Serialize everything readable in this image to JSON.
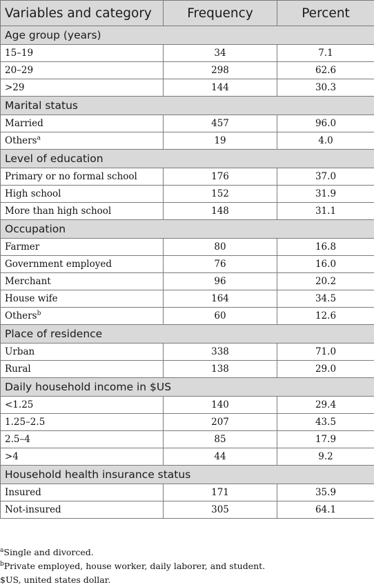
{
  "table": {
    "headers": [
      "Variables and category",
      "Frequency",
      "Percent"
    ],
    "sections": [
      {
        "title": "Age group (years)",
        "rows": [
          {
            "label": "15–19",
            "sup": "",
            "frequency": "34",
            "percent": "7.1"
          },
          {
            "label": "20–29",
            "sup": "",
            "frequency": "298",
            "percent": "62.6"
          },
          {
            "label": ">29",
            "sup": "",
            "frequency": "144",
            "percent": "30.3"
          }
        ]
      },
      {
        "title": "Marital status",
        "rows": [
          {
            "label": "Married",
            "sup": "",
            "frequency": "457",
            "percent": "96.0"
          },
          {
            "label": "Others",
            "sup": "a",
            "frequency": "19",
            "percent": "4.0"
          }
        ]
      },
      {
        "title": "Level of education",
        "rows": [
          {
            "label": "Primary or no formal school",
            "sup": "",
            "frequency": "176",
            "percent": "37.0"
          },
          {
            "label": "High school",
            "sup": "",
            "frequency": "152",
            "percent": "31.9"
          },
          {
            "label": "More than high school",
            "sup": "",
            "frequency": "148",
            "percent": "31.1"
          }
        ]
      },
      {
        "title": "Occupation",
        "rows": [
          {
            "label": "Farmer",
            "sup": "",
            "frequency": "80",
            "percent": "16.8"
          },
          {
            "label": "Government employed",
            "sup": "",
            "frequency": "76",
            "percent": "16.0"
          },
          {
            "label": "Merchant",
            "sup": "",
            "frequency": "96",
            "percent": "20.2"
          },
          {
            "label": "House wife",
            "sup": "",
            "frequency": "164",
            "percent": "34.5"
          },
          {
            "label": "Others",
            "sup": "b",
            "frequency": "60",
            "percent": "12.6"
          }
        ]
      },
      {
        "title": "Place of residence",
        "rows": [
          {
            "label": "Urban",
            "sup": "",
            "frequency": "338",
            "percent": "71.0"
          },
          {
            "label": "Rural",
            "sup": "",
            "frequency": "138",
            "percent": "29.0"
          }
        ]
      },
      {
        "title": "Daily household income in $US",
        "rows": [
          {
            "label": "<1.25",
            "sup": "",
            "frequency": "140",
            "percent": "29.4"
          },
          {
            "label": "1.25–2.5",
            "sup": "",
            "frequency": "207",
            "percent": "43.5"
          },
          {
            "label": "2.5–4",
            "sup": "",
            "frequency": "85",
            "percent": "17.9"
          },
          {
            "label": ">4",
            "sup": "",
            "frequency": "44",
            "percent": "9.2"
          }
        ]
      },
      {
        "title": "Household health insurance status",
        "rows": [
          {
            "label": "Insured",
            "sup": "",
            "frequency": "171",
            "percent": "35.9"
          },
          {
            "label": "Not-insured",
            "sup": "",
            "frequency": "305",
            "percent": "64.1"
          }
        ]
      }
    ]
  },
  "footnotes": [
    {
      "sup": "a",
      "text": "Single and divorced."
    },
    {
      "sup": "b",
      "text": "Private employed, house worker, daily laborer, and student."
    },
    {
      "sup": "",
      "text": "$US, united states dollar."
    }
  ]
}
